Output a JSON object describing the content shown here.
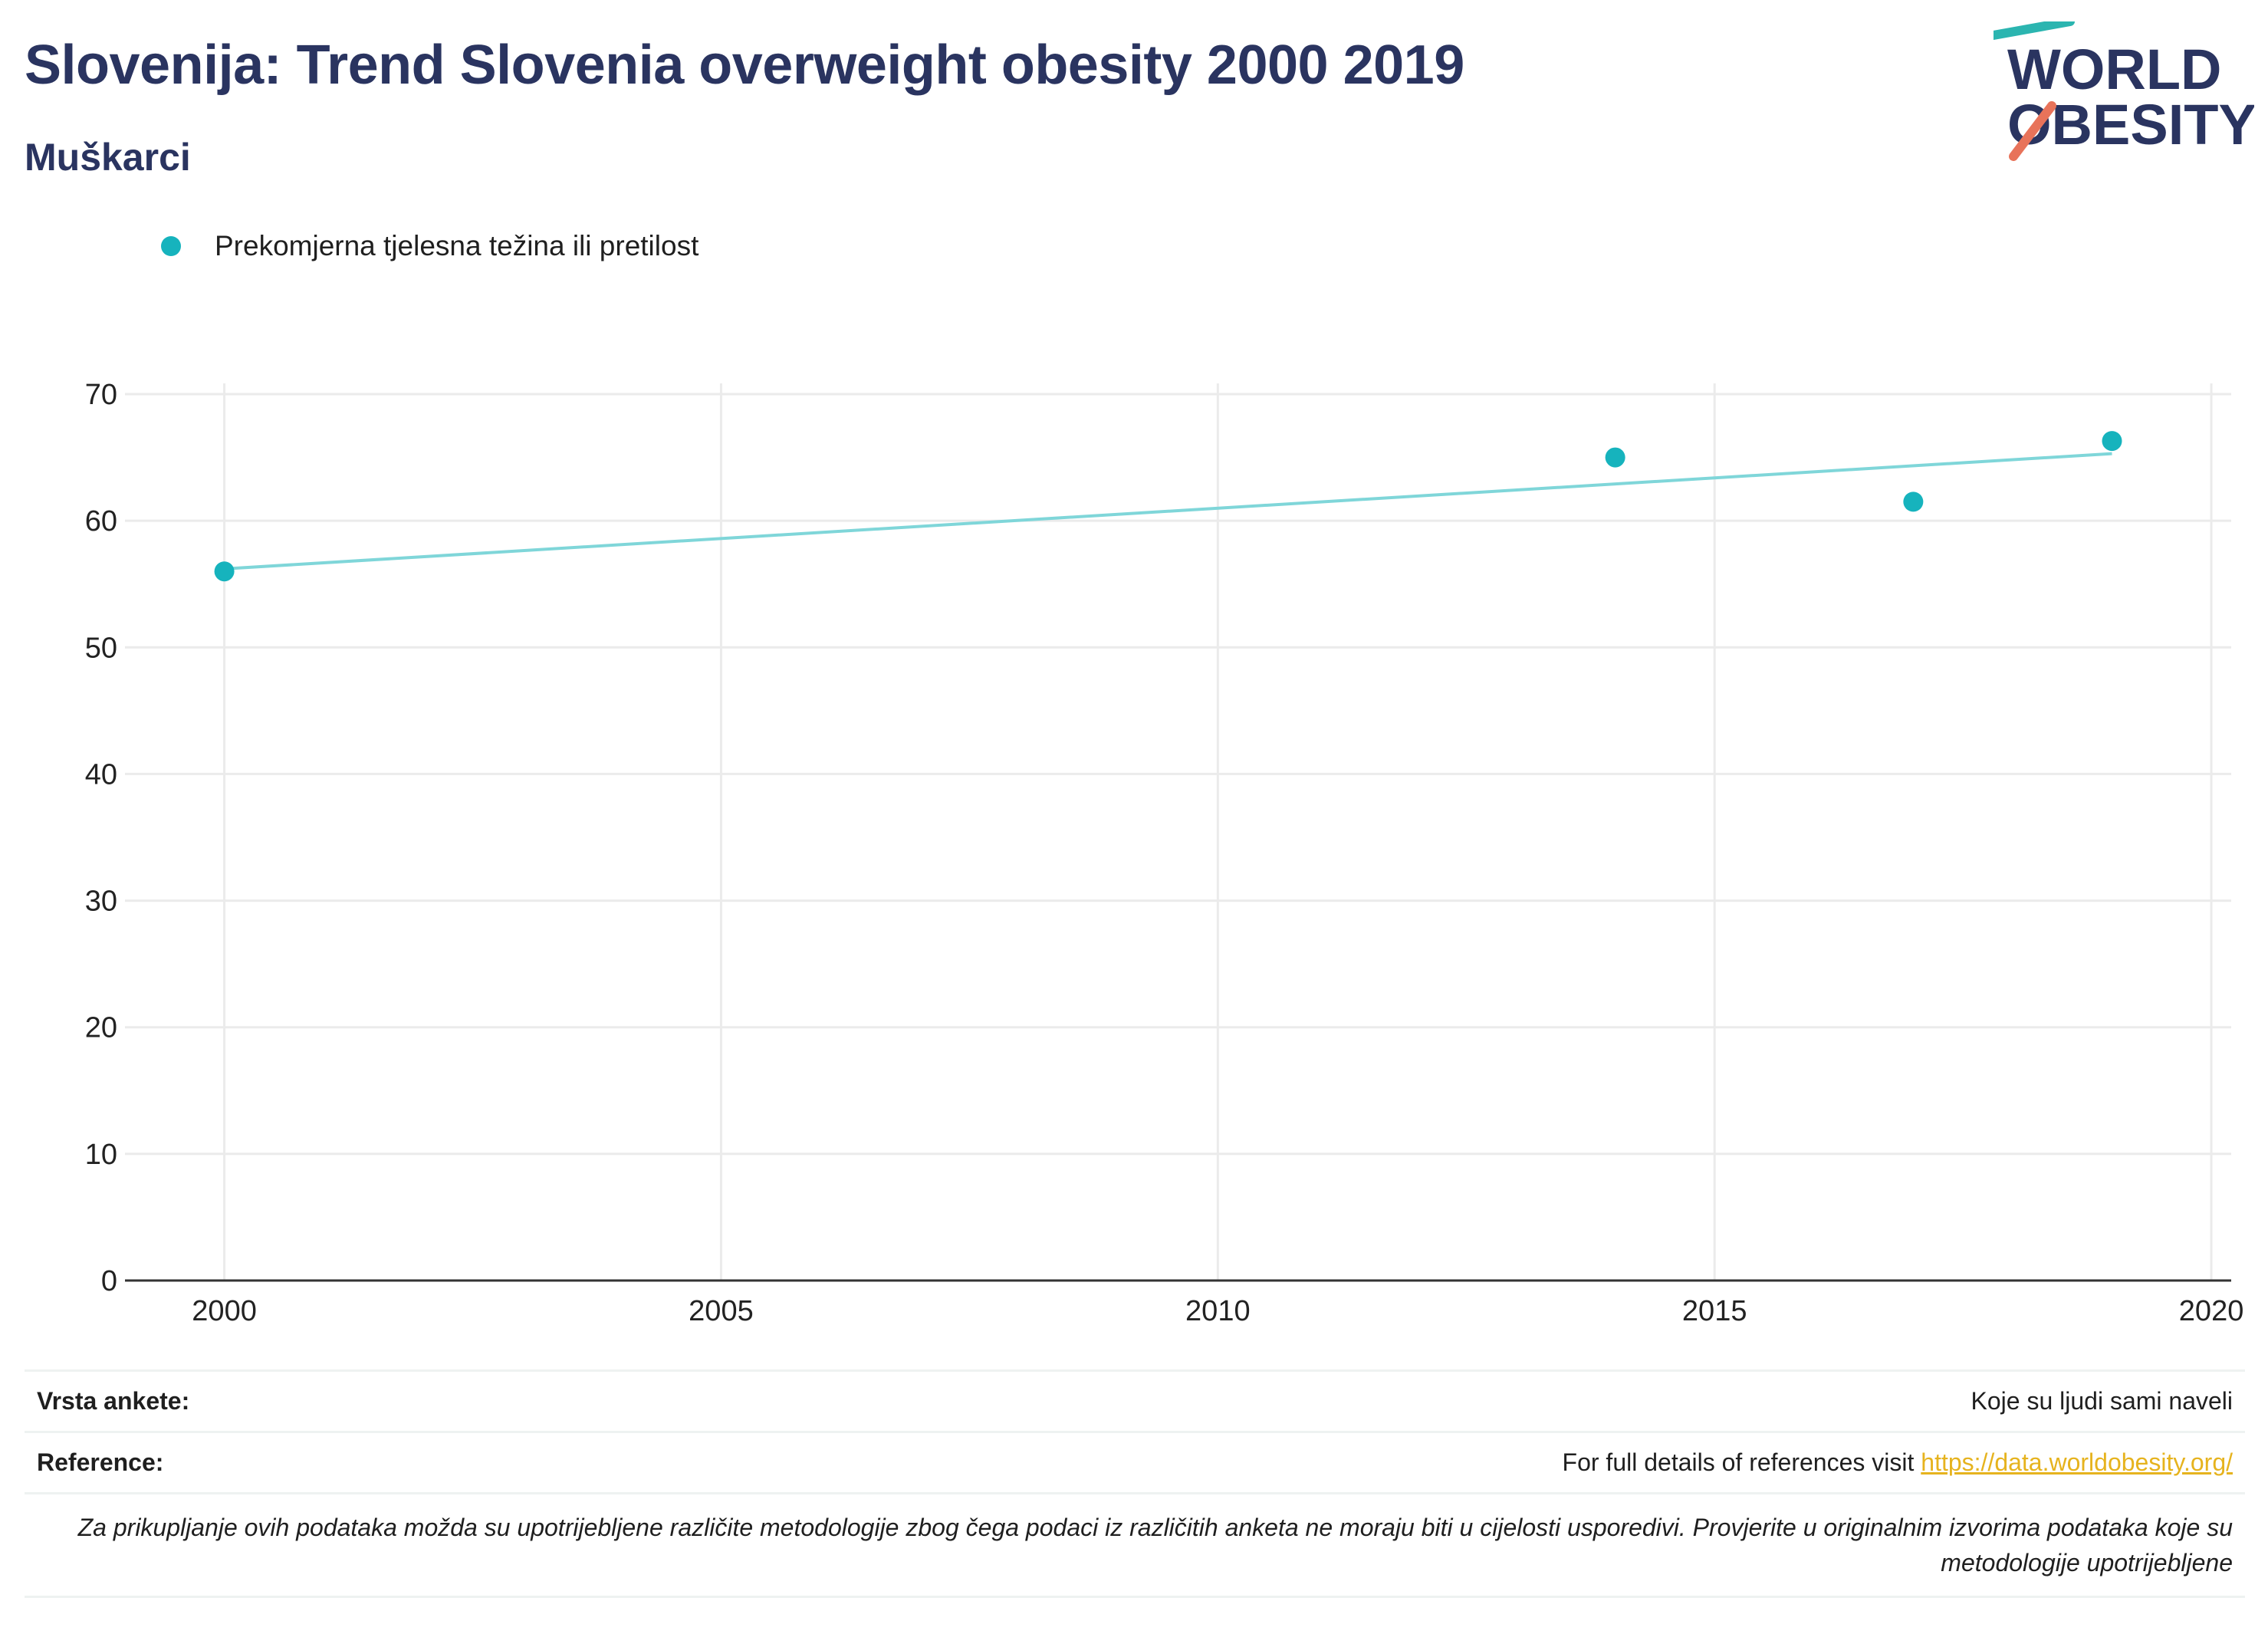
{
  "header": {
    "title": "Slovenija: Trend Slovenia overweight obesity 2000 2019",
    "subtitle": "Muškarci"
  },
  "logo": {
    "line1": "WORLD",
    "line2": "OBESITY"
  },
  "colors": {
    "series": "#16b3bd",
    "trend": "#7fd6d9",
    "title": "#2a3460",
    "link": "#e6b31e",
    "logo_teal": "#2bb5b0",
    "logo_coral": "#e8735a"
  },
  "chart_data": {
    "type": "scatter",
    "title": "",
    "xlabel": "",
    "ylabel": "",
    "xlim": [
      1999,
      2020.2
    ],
    "ylim": [
      0,
      70
    ],
    "xticks": [
      2000,
      2005,
      2010,
      2015,
      2020
    ],
    "yticks": [
      0,
      10,
      20,
      30,
      40,
      50,
      60,
      70
    ],
    "grid": true,
    "legend_position": "top-left",
    "series": [
      {
        "name": "Prekomjerna tjelesna težina ili pretilost",
        "x": [
          2000,
          2014,
          2017,
          2019
        ],
        "y": [
          56.0,
          65.0,
          61.5,
          66.3
        ]
      }
    ],
    "trendline": {
      "x": [
        2000,
        2019
      ],
      "y": [
        56.2,
        65.3
      ]
    }
  },
  "footer": {
    "survey_label": "Vrsta ankete:",
    "survey_value": "Koje su ljudi sami naveli",
    "reference_label": "Reference:",
    "reference_text": "For full details of references visit ",
    "reference_link": "https://data.worldobesity.org/",
    "note": "Za prikupljanje ovih podataka možda su upotrijebljene različite metodologije zbog čega podaci iz različitih anketa ne moraju biti u cijelosti usporedivi. Provjerite u originalnim izvorima podataka koje su metodologije upotrijebljene"
  }
}
